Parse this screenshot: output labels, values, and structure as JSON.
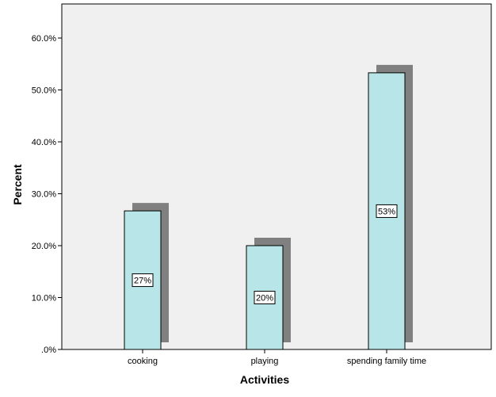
{
  "chart_data": {
    "type": "bar",
    "categories": [
      "cooking",
      "playing",
      "spending family time"
    ],
    "values": [
      26.7,
      20.0,
      53.3
    ],
    "data_labels": [
      "27%",
      "20%",
      "53%"
    ],
    "xlabel": "Activities",
    "ylabel": "Percent",
    "ylim": [
      0,
      65
    ],
    "yticks": [
      0,
      10,
      20,
      30,
      40,
      50,
      60
    ],
    "ytick_labels": [
      ".0%",
      "10.0%",
      "20.0%",
      "30.0%",
      "40.0%",
      "50.0%",
      "60.0%"
    ],
    "grid": false,
    "bar_color": "#b8e6e8",
    "shadow_color": "#808080",
    "plot_background": "#f0f0f0"
  }
}
